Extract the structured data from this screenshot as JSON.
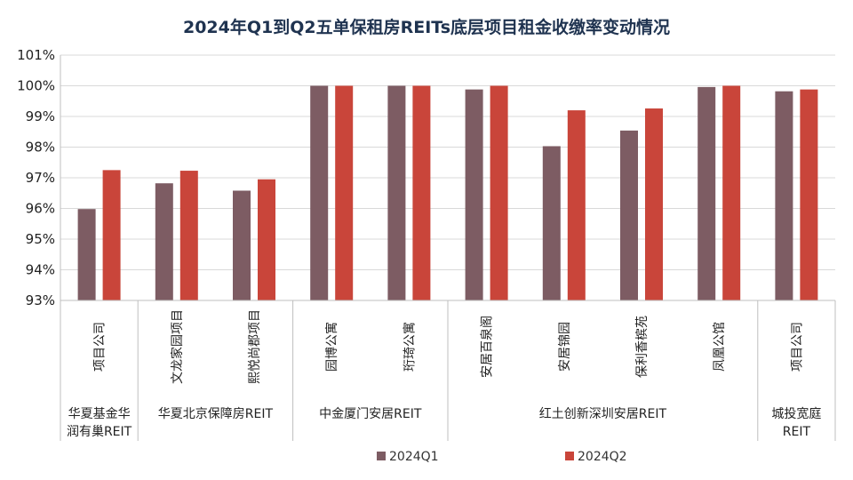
{
  "chart_data": {
    "type": "bar",
    "title": "2024年Q1到Q2五单保租房REITs底层项目租金收缴率变动情况",
    "xlabel": "",
    "ylabel": "",
    "ylim": [
      93,
      101
    ],
    "yticks": [
      "93%",
      "94%",
      "95%",
      "96%",
      "97%",
      "98%",
      "99%",
      "100%",
      "101%"
    ],
    "ytick_values": [
      93,
      94,
      95,
      96,
      97,
      98,
      99,
      100,
      101
    ],
    "grid": true,
    "legend_position": "bottom",
    "categories": [
      "项目公司",
      "文龙家园项目",
      "熙悦尚郡项目",
      "园博公寓",
      "珩琦公寓",
      "安居百泉阁",
      "安居锦园",
      "保利香槟苑",
      "凤凰公馆",
      "项目公司"
    ],
    "groups": [
      {
        "label_lines": [
          "华夏基金华",
          "润有巢REIT"
        ],
        "span": 1
      },
      {
        "label_lines": [
          "华夏北京保障房REIT"
        ],
        "span": 2
      },
      {
        "label_lines": [
          "中金厦门安居REIT"
        ],
        "span": 2
      },
      {
        "label_lines": [
          "红土创新深圳安居REIT"
        ],
        "span": 4
      },
      {
        "label_lines": [
          "城投宽庭",
          "REIT"
        ],
        "span": 1
      }
    ],
    "series": [
      {
        "name": "2024Q1",
        "color": "#7d5c63",
        "values": [
          95.98,
          96.82,
          96.58,
          100.0,
          100.0,
          99.88,
          98.03,
          98.54,
          99.96,
          99.82
        ]
      },
      {
        "name": "2024Q2",
        "color": "#c9453a",
        "values": [
          97.25,
          97.23,
          96.95,
          100.0,
          100.0,
          100.0,
          99.2,
          99.26,
          100.0,
          99.88
        ]
      }
    ]
  }
}
